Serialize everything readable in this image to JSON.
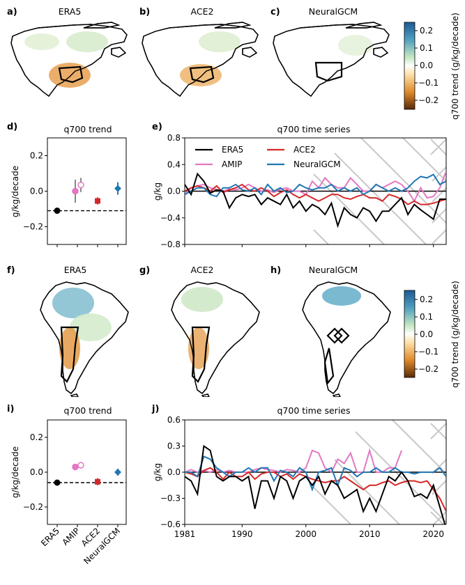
{
  "colors": {
    "ERA5": "#000000",
    "AMIP": "#e377c2",
    "ACE2": "#d62728",
    "NeuralGCM": "#1f77b4"
  },
  "panel_labels": [
    "a)",
    "b)",
    "c)",
    "d)",
    "e)",
    "f)",
    "g)",
    "h)",
    "i)",
    "j)"
  ],
  "maps": {
    "top_titles": [
      "ERA5",
      "ACE2",
      "NeuralGCM"
    ],
    "bottom_titles": [
      "ERA5",
      "ACE2",
      "NeuralGCM"
    ],
    "colorbar_label": "q700 trend (g/kg/decade)",
    "colorbar_ticks": [
      "0.2",
      "0.1",
      "0.0",
      "−0.1",
      "−0.2"
    ]
  },
  "chart_data": [
    {
      "id": "d",
      "type": "scatter",
      "title": "q700 trend",
      "ylabel": "g/kg/decade",
      "ylim": [
        -0.3,
        0.3
      ],
      "yticks": [
        "0.2",
        "0.0",
        "−0.2"
      ],
      "categories": [
        "ERA5",
        "AMIP",
        "ACE2",
        "NeuralGCM"
      ],
      "points": [
        {
          "name": "ERA5",
          "values": [
            -0.11
          ],
          "err": [
            0
          ]
        },
        {
          "name": "AMIP",
          "values": [
            0.0,
            0.035
          ],
          "err": [
            0.065,
            0.04
          ]
        },
        {
          "name": "ACE2",
          "values": [
            -0.055
          ],
          "err": [
            0.02
          ]
        },
        {
          "name": "NeuralGCM",
          "values": [
            0.015
          ],
          "err": [
            0.035
          ]
        }
      ],
      "reference_line": -0.11
    },
    {
      "id": "e",
      "type": "line",
      "title": "q700 time series",
      "ylabel": "g/kg",
      "ylim": [
        -0.8,
        0.8
      ],
      "yticks": [
        "0.8",
        "0.4",
        "0.0",
        "−0.4",
        "−0.8"
      ],
      "xlim": [
        1981,
        2022
      ],
      "x_start": 1981,
      "legend": [
        "ERA5",
        "AMIP",
        "ACE2",
        "NeuralGCM"
      ],
      "series": [
        {
          "name": "ERA5",
          "values": [
            0.1,
            -0.05,
            0.26,
            0.15,
            -0.03,
            0.02,
            0.0,
            -0.25,
            -0.1,
            -0.05,
            -0.08,
            -0.05,
            -0.2,
            -0.1,
            -0.15,
            -0.2,
            -0.05,
            -0.25,
            -0.15,
            -0.3,
            -0.2,
            -0.25,
            -0.35,
            -0.18,
            -0.52,
            -0.25,
            -0.35,
            -0.4,
            -0.25,
            -0.3,
            -0.45,
            -0.3,
            -0.3,
            -0.2,
            -0.1,
            -0.35,
            -0.2,
            -0.28,
            -0.35,
            -0.42,
            -0.12,
            -0.12
          ]
        },
        {
          "name": "AMIP",
          "values": [
            -0.05,
            0.05,
            0.08,
            0.1,
            0.05,
            0.02,
            0.0,
            0.03,
            0.02,
            0.05,
            0.1,
            0.05,
            0.0,
            0.02,
            -0.02,
            0.03,
            0.05,
            0.0,
            0.0,
            -0.05,
            0.15,
            0.05,
            0.2,
            0.1,
            0.05,
            0.05,
            0.2,
            0.1,
            0.0,
            0.0,
            0.1,
            0.05,
            0.1,
            0.15,
            0.1,
            0.0,
            -0.15,
            0.05,
            -0.1,
            -0.08,
            0.05,
            0.3
          ]
        },
        {
          "name": "ACE2",
          "values": [
            0.0,
            0.05,
            0.08,
            0.05,
            0.0,
            0.08,
            -0.02,
            0.02,
            0.05,
            0.1,
            0.02,
            0.0,
            0.05,
            0.0,
            -0.08,
            -0.02,
            0.02,
            -0.05,
            -0.1,
            -0.05,
            -0.1,
            -0.15,
            -0.1,
            -0.05,
            -0.05,
            -0.1,
            -0.12,
            -0.08,
            -0.05,
            -0.1,
            -0.1,
            -0.15,
            -0.05,
            -0.08,
            -0.12,
            -0.2,
            -0.15,
            -0.2,
            -0.2,
            -0.18,
            -0.15,
            -0.12
          ]
        },
        {
          "name": "NeuralGCM",
          "values": [
            -0.05,
            0.0,
            0.05,
            0.05,
            -0.05,
            -0.08,
            0.05,
            0.05,
            0.1,
            0.02,
            0.0,
            0.05,
            -0.05,
            0.1,
            0.0,
            0.05,
            -0.02,
            0.0,
            0.1,
            0.05,
            0.02,
            0.05,
            0.05,
            0.1,
            0.0,
            0.05,
            0.0,
            0.05,
            -0.05,
            0.0,
            0.1,
            0.05,
            0.0,
            0.05,
            0.0,
            0.05,
            0.15,
            0.22,
            0.2,
            0.25,
            0.1,
            0.15
          ]
        }
      ]
    },
    {
      "id": "i",
      "type": "scatter",
      "title": "q700 trend",
      "ylabel": "g/kg/decade",
      "ylim": [
        -0.3,
        0.3
      ],
      "yticks": [
        "0.2",
        "0.0",
        "−0.2"
      ],
      "categories": [
        "ERA5",
        "AMIP",
        "ACE2",
        "NeuralGCM"
      ],
      "points": [
        {
          "name": "ERA5",
          "values": [
            -0.06
          ],
          "err": [
            0
          ]
        },
        {
          "name": "AMIP",
          "values": [
            0.03,
            0.04
          ],
          "err": [
            0.018,
            0.015
          ]
        },
        {
          "name": "ACE2",
          "values": [
            -0.055
          ],
          "err": [
            0.02
          ]
        },
        {
          "name": "NeuralGCM",
          "values": [
            0.0
          ],
          "err": [
            0.02
          ]
        }
      ],
      "reference_line": -0.06
    },
    {
      "id": "j",
      "type": "line",
      "title": "q700 time series",
      "ylabel": "g/kg",
      "ylim": [
        -0.6,
        0.6
      ],
      "yticks": [
        "0.6",
        "0.3",
        "0.0",
        "−0.3",
        "−0.6"
      ],
      "xlim": [
        1981,
        2022
      ],
      "x_start": 1981,
      "xticks": [
        "1981",
        "1990",
        "2000",
        "2010",
        "2020"
      ],
      "series": [
        {
          "name": "ERA5",
          "values": [
            -0.05,
            -0.1,
            -0.25,
            0.3,
            0.25,
            -0.05,
            -0.1,
            -0.05,
            -0.05,
            -0.1,
            -0.05,
            -0.42,
            -0.1,
            -0.1,
            -0.3,
            -0.05,
            -0.1,
            -0.3,
            -0.1,
            -0.05,
            -0.15,
            -0.05,
            -0.25,
            -0.1,
            -0.15,
            -0.3,
            -0.25,
            -0.2,
            -0.45,
            -0.3,
            -0.45,
            -0.25,
            -0.05,
            -0.1,
            0.0,
            -0.1,
            -0.28,
            -0.25,
            -0.3,
            -0.15,
            -0.4,
            -0.65
          ]
        },
        {
          "name": "AMIP",
          "values": [
            0.0,
            0.03,
            0.0,
            0.02,
            0.0,
            0.03,
            0.0,
            0.02,
            0.0,
            0.0,
            0.0,
            0.03,
            0.05,
            0.03,
            0.02,
            0.0,
            0.03,
            0.02,
            0.0,
            0.05,
            0.25,
            0.22,
            0.05,
            0.0,
            0.15,
            0.1,
            0.22,
            0.0,
            0.0,
            0.25,
            0.0,
            0.0,
            0.05,
            0.05,
            0.25
          ]
        },
        {
          "name": "ACE2",
          "values": [
            0.0,
            -0.02,
            -0.05,
            0.02,
            0.05,
            0.0,
            -0.08,
            0.0,
            -0.05,
            -0.05,
            0.0,
            -0.08,
            -0.02,
            0.0,
            0.0,
            -0.05,
            -0.02,
            -0.08,
            -0.02,
            -0.05,
            -0.08,
            -0.1,
            -0.12,
            -0.1,
            -0.1,
            -0.05,
            -0.1,
            -0.15,
            -0.2,
            -0.15,
            -0.15,
            -0.12,
            -0.1,
            -0.15,
            -0.12,
            -0.1,
            -0.1,
            -0.12,
            -0.1,
            -0.2,
            -0.3,
            -0.45
          ]
        },
        {
          "name": "NeuralGCM",
          "values": [
            0.0,
            0.0,
            -0.05,
            0.18,
            0.15,
            0.05,
            0.0,
            -0.05,
            0.0,
            0.0,
            0.05,
            0.0,
            0.05,
            0.05,
            -0.1,
            0.02,
            0.0,
            -0.05,
            0.05,
            0.0,
            -0.2,
            0.0,
            0.02,
            0.05,
            -0.15,
            0.05,
            0.02,
            -0.05,
            0.0,
            0.0,
            0.05,
            0.0,
            0.0,
            0.05,
            0.0,
            0.0,
            -0.02,
            0.0,
            0.0,
            0.0,
            0.05,
            -0.05
          ]
        }
      ]
    }
  ]
}
